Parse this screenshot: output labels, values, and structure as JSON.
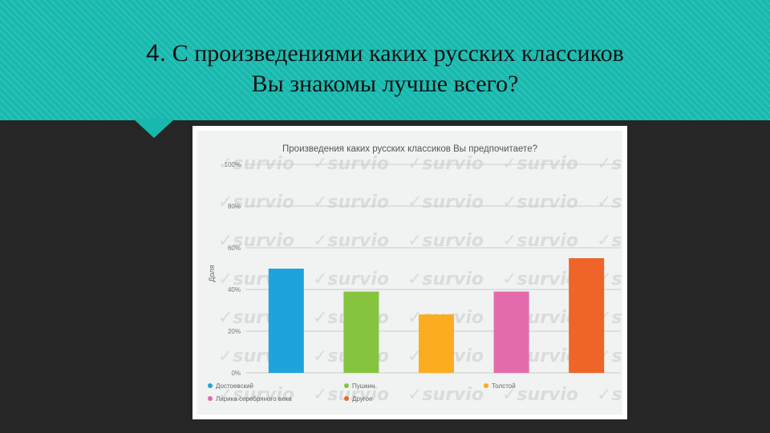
{
  "slide": {
    "title_number": "4.",
    "title_line1_rest": "С произведениями каких русских классиков",
    "title_line2": "Вы знакомы лучше всего?",
    "accent_color": "#17b9ae"
  },
  "watermark": {
    "text": "survio"
  },
  "chart_data": {
    "type": "bar",
    "title": "Произведения каких русских классиков Вы предпочитаете?",
    "ylabel": "Доля",
    "xlabel": "",
    "ylim": [
      0,
      100
    ],
    "yticks": [
      "0%",
      "20%",
      "40%",
      "60%",
      "80%",
      "100%"
    ],
    "grid": true,
    "legend_position": "bottom",
    "categories": [
      "Достоевский",
      "Пушкин",
      "Толстой",
      "Лирика серебряного века",
      "Другое"
    ],
    "values": [
      50,
      39,
      28,
      39,
      55
    ],
    "colors": [
      "#1fa3dd",
      "#86c440",
      "#fbac1f",
      "#e36bab",
      "#ee6429"
    ]
  }
}
